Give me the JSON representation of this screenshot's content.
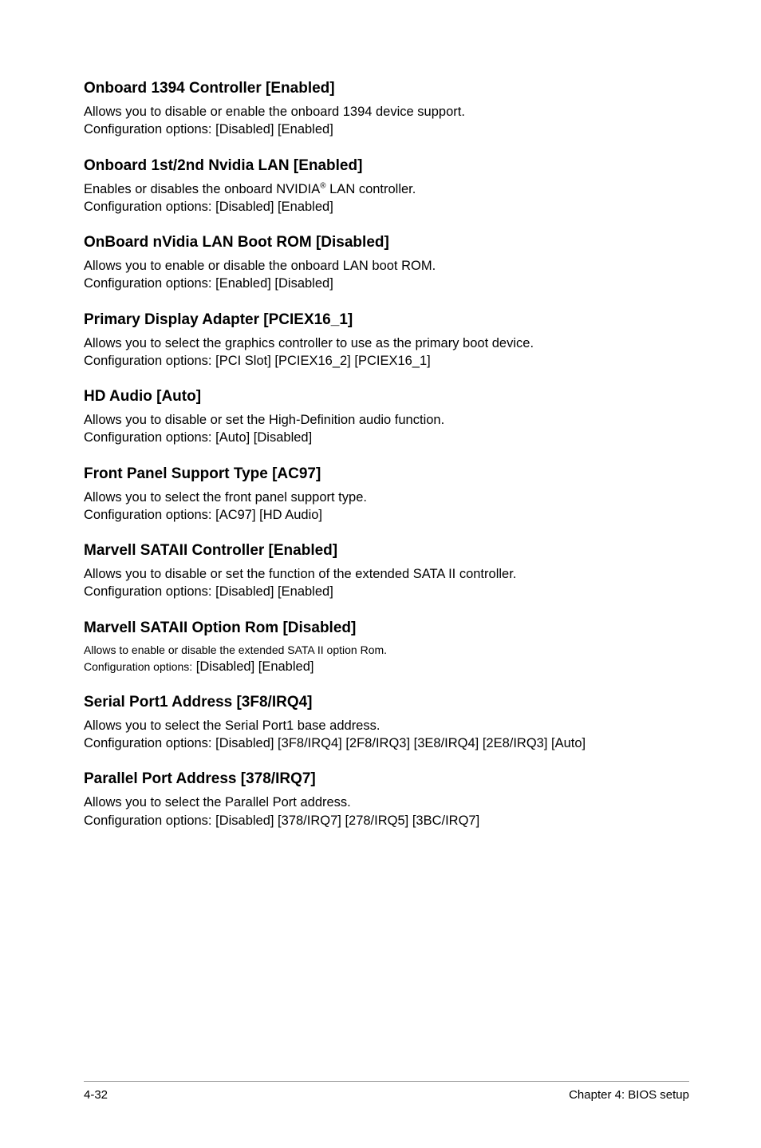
{
  "sections": [
    {
      "title": "Onboard 1394 Controller [Enabled]",
      "line1": "Allows you to disable or enable the onboard 1394 device support.",
      "line2": "Configuration options: [Disabled] [Enabled]",
      "smaller": false
    },
    {
      "title": "Onboard 1st/2nd Nvidia LAN [Enabled]",
      "line1_pre": "Enables or disables the onboard NVIDIA",
      "line1_sup": "®",
      "line1_post": " LAN controller.",
      "line2": "Configuration options: [Disabled] [Enabled]",
      "smaller": false
    },
    {
      "title": "OnBoard nVidia LAN Boot ROM [Disabled]",
      "line1": "Allows you to enable or disable the onboard LAN boot ROM.",
      "line2": "Configuration options: [Enabled] [Disabled]",
      "smaller": false
    },
    {
      "title": "Primary Display Adapter [PCIEX16_1]",
      "line1": "Allows you to select the graphics controller to use as the primary boot device.",
      "line2": "Configuration options: [PCI Slot] [PCIEX16_2] [PCIEX16_1]",
      "smaller": false
    },
    {
      "title": "HD Audio [Auto]",
      "line1": "Allows you to disable or set the High-Definition audio function.",
      "line2": "Configuration options: [Auto] [Disabled]",
      "smaller": false
    },
    {
      "title": "Front Panel Support Type [AC97]",
      "line1": "Allows you to select the front panel support type.",
      "line2": "Configuration options: [AC97] [HD Audio]",
      "smaller": false
    },
    {
      "title": "Marvell SATAII Controller [Enabled]",
      "line1": "Allows you to disable or set the function of the extended SATA II controller.",
      "line2": "Configuration options: [Disabled] [Enabled]",
      "smaller": false
    },
    {
      "title": "Marvell SATAII Option Rom [Disabled]",
      "line1": "Allows to enable or disable the extended SATA II option Rom.",
      "line2_pre": "Configuration options:",
      "line2_post": " [Disabled] [Enabled]",
      "smaller": true
    },
    {
      "title": "Serial Port1 Address [3F8/IRQ4]",
      "line1": "Allows you to select the Serial Port1 base address.",
      "line2": "Configuration options: [Disabled] [3F8/IRQ4] [2F8/IRQ3] [3E8/IRQ4] [2E8/IRQ3] [Auto]",
      "smaller": false
    },
    {
      "title": "Parallel Port Address [378/IRQ7]",
      "line1": "Allows you to select the Parallel Port address.",
      "line2": "Configuration options: [Disabled] [378/IRQ7] [278/IRQ5] [3BC/IRQ7]",
      "smaller": false
    }
  ],
  "footer": {
    "left": "4-32",
    "right": "Chapter 4: BIOS setup"
  }
}
